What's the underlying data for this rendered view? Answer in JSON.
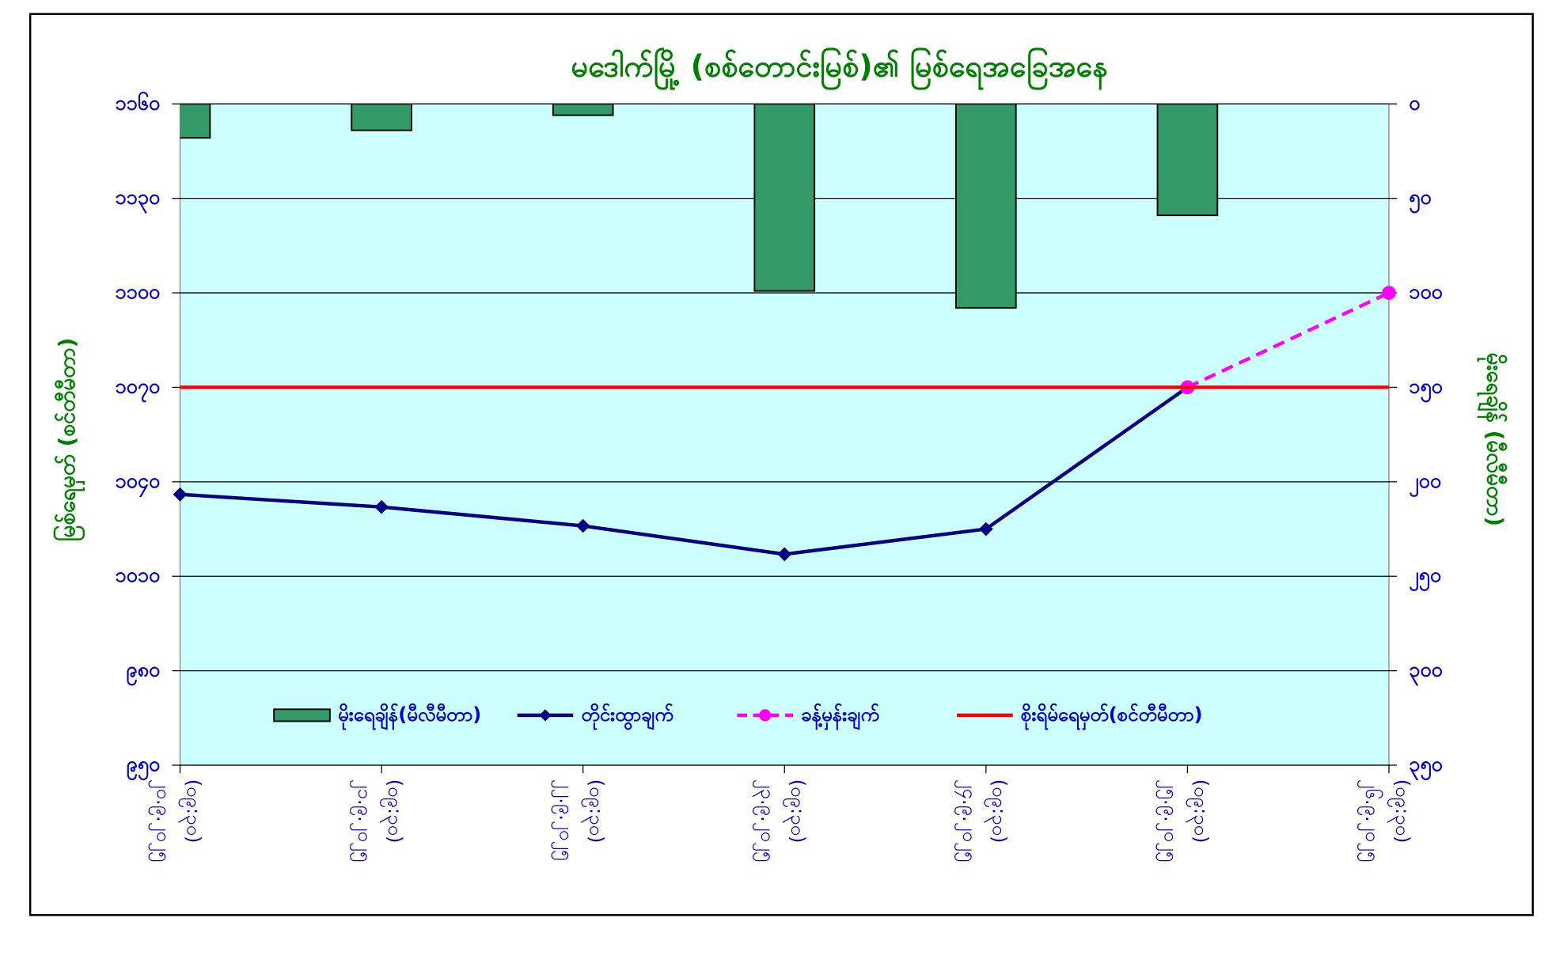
{
  "chart_data": {
    "type": "combo",
    "title": "မဒေါက်မြို့ (စစ်တောင်းမြစ်)၏ မြစ်ရေအခြေအနေ",
    "y_label": "မြစ်ရေမှတ် (စင်တီမီတာ)",
    "y2_label": "မိုးရေချိန် (မီလီမီတာ)",
    "categories": [
      "၂၀.၉.၂၀၂၅ (၀၉:၃၀)",
      "၂၁.၉.၂၀၂၅ (၀၉:၃၀)",
      "၂၂.၉.၂၀၂၅ (၀၉:၃၀)",
      "၂၃.၉.၂၀၂၅ (၀၉:၃၀)",
      "၂၄.၉.၂၀၂၅ (၀၉:၃၀)",
      "၂၅.၉.၂၀၂၅ (၀၉:၃၀)",
      "၂၆.၉.၂၀၂၅ (၀၉:၃၀)"
    ],
    "series": [
      {
        "name": "မိုးရေချိန်(မီလီမီတာ)",
        "type": "bar",
        "axis": "y2",
        "color": "#339966",
        "values": [
          18,
          14,
          6,
          99,
          108,
          59,
          null
        ]
      },
      {
        "name": "တိုင်းထွာချက်",
        "type": "line",
        "color": "#000080",
        "marker": "diamond",
        "values": [
          1036,
          1032,
          1026,
          1017,
          1025,
          1070,
          null
        ]
      },
      {
        "name": "ခန့်မှန်းချက်",
        "type": "line",
        "color": "#ff00ff",
        "marker": "circle",
        "dashed": true,
        "values": [
          null,
          null,
          null,
          null,
          null,
          1070,
          1100
        ]
      },
      {
        "name": "စိုးရိမ်ရေမှတ်(စင်တီမီတာ)",
        "type": "line",
        "color": "#ff0000",
        "values": [
          1070,
          1070,
          1070,
          1070,
          1070,
          1070,
          1070
        ]
      }
    ],
    "ylim": [
      950,
      1160
    ],
    "yticks": [
      {
        "value": 950,
        "label": "၉၅၀"
      },
      {
        "value": 980,
        "label": "၉၈၀"
      },
      {
        "value": 1010,
        "label": "၁၀၁၀"
      },
      {
        "value": 1040,
        "label": "၁၀၄၀"
      },
      {
        "value": 1070,
        "label": "၁၀၇၀"
      },
      {
        "value": 1100,
        "label": "၁၁၀၀"
      },
      {
        "value": 1130,
        "label": "၁၁၃၀"
      },
      {
        "value": 1160,
        "label": "၁၁၆၀"
      }
    ],
    "y2lim": [
      0,
      350
    ],
    "y2_inverted": true,
    "y2ticks": [
      {
        "value": 0,
        "label": "၀"
      },
      {
        "value": 50,
        "label": "၅၀"
      },
      {
        "value": 100,
        "label": "၁၀၀"
      },
      {
        "value": 150,
        "label": "၁၅၀"
      },
      {
        "value": 200,
        "label": "၂၀၀"
      },
      {
        "value": 250,
        "label": "၂၅၀"
      },
      {
        "value": 300,
        "label": "၃၀၀"
      },
      {
        "value": 350,
        "label": "၃၅၀"
      }
    ],
    "grid": true,
    "legend": "lower center",
    "plot_background": "#ccffff"
  }
}
